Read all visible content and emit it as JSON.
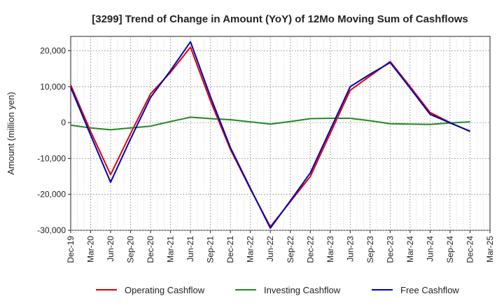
{
  "chart_data": {
    "type": "line",
    "title": "[3299]  Trend of Change in Amount (YoY) of 12Mo Moving Sum of Cashflows",
    "xlabel": "",
    "ylabel": "Amount (million yen)",
    "ylim": [
      -30000,
      24000
    ],
    "yticks": [
      -30000,
      -20000,
      -10000,
      0,
      10000,
      20000
    ],
    "ytick_labels": [
      "-30,000",
      "-20,000",
      "-10,000",
      "0",
      "10,000",
      "20,000"
    ],
    "categories": [
      "Dec-19",
      "Mar-20",
      "Jun-20",
      "Sep-20",
      "Dec-20",
      "Mar-21",
      "Jun-21",
      "Sep-21",
      "Dec-21",
      "Mar-22",
      "Jun-22",
      "Sep-22",
      "Dec-22",
      "Mar-23",
      "Jun-23",
      "Sep-23",
      "Dec-23",
      "Mar-24",
      "Jun-24",
      "Sep-24",
      "Dec-24",
      "Mar-25"
    ],
    "grid": true,
    "legend_position": "bottom",
    "series": [
      {
        "name": "Operating Cashflow",
        "color": "#dd0000",
        "values": [
          10500,
          -2500,
          -14500,
          -3000,
          8000,
          14000,
          21000,
          6000,
          -7500,
          -18500,
          -29000,
          -22000,
          -15000,
          -3000,
          9000,
          13000,
          17000,
          10000,
          2800,
          0,
          -2500,
          null
        ]
      },
      {
        "name": "Investing Cashflow",
        "color": "#228822",
        "values": [
          -700,
          -1500,
          -2000,
          -1500,
          -1000,
          300,
          1500,
          1100,
          800,
          200,
          -400,
          300,
          1100,
          1200,
          1200,
          500,
          -300,
          -400,
          -500,
          -100,
          200,
          null
        ]
      },
      {
        "name": "Free Cashflow",
        "color": "#0000bb",
        "values": [
          9800,
          -3500,
          -16600,
          -4500,
          7000,
          14500,
          22500,
          7200,
          -7000,
          -18300,
          -29400,
          -21800,
          -14000,
          -2000,
          10000,
          13500,
          16700,
          9600,
          2300,
          -100,
          -2400,
          null
        ]
      }
    ]
  }
}
